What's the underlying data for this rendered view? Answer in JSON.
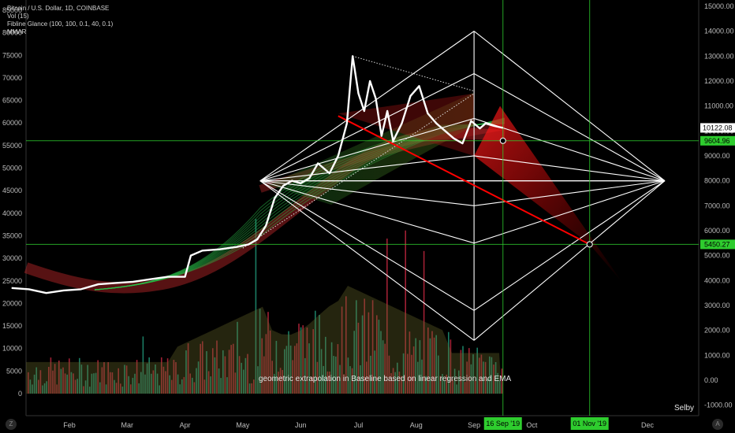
{
  "legend": {
    "symbol": "Bitcoin / U.S. Dollar, 1D, COINBASE",
    "vol": "Vol (15)",
    "fibline": "Fibline Glance (100, 100, 0.1, 40, 0.1)",
    "mmar": "MMAR"
  },
  "annotation_text": "geometric extrapolation in Baseline based on linear regression and EMA",
  "author": "Selby",
  "buttons": {
    "left": "Z",
    "right": "A"
  },
  "colors": {
    "price": "#ffffff",
    "up_volume": "#1e8a6e",
    "down_volume": "#b0243a",
    "ema_green": "#2bbf4a",
    "ema_red": "#c0282b",
    "projection": "#ff0000",
    "guide": "#2ecc2e"
  },
  "chart_data": {
    "type": "line",
    "left_axis": {
      "labels": [
        "85000",
        "80000",
        "75000",
        "70000",
        "65000",
        "60000",
        "55000",
        "50000",
        "45000",
        "40000",
        "35000",
        "30000",
        "25000",
        "20000",
        "15000",
        "10000",
        "5000",
        "0"
      ],
      "range": [
        0,
        85000
      ]
    },
    "right_axis": {
      "labels": [
        "15000.00",
        "14000.00",
        "13000.00",
        "12000.00",
        "11000.00",
        "10000.00",
        "9000.00",
        "8000.00",
        "7000.00",
        "6000.00",
        "5000.00",
        "4000.00",
        "3000.00",
        "2000.00",
        "1000.00",
        "0.00",
        "-1000.00"
      ],
      "range": [
        -1000,
        15000
      ]
    },
    "x_labels": [
      "Feb",
      "Mar",
      "Apr",
      "May",
      "Jun",
      "Jul",
      "Aug",
      "Sep",
      "Oct",
      "Nov",
      "Dec"
    ],
    "x_label_months": [
      2,
      3,
      4,
      5,
      6,
      7,
      8,
      9,
      10,
      11,
      12
    ],
    "current_price": "10122.08",
    "level_tags": [
      {
        "label": "9604.96",
        "value": 9604.96
      },
      {
        "label": "5450.27",
        "value": 5450.27
      }
    ],
    "date_tags": [
      {
        "label": "16 Sep '19",
        "month": 9.5
      },
      {
        "label": "01 Nov '19",
        "month": 11.0
      }
    ],
    "series": [
      {
        "name": "",
        "x": [
          1.0,
          1.3,
          1.6,
          1.9,
          2.2,
          2.5,
          2.8,
          3.1,
          3.4,
          3.7,
          4.0,
          4.1,
          4.3,
          4.6,
          4.9,
          5.1,
          5.25,
          5.4,
          5.55,
          5.7,
          5.85,
          6.0,
          6.15,
          6.3,
          6.5,
          6.65,
          6.8,
          6.9,
          7.0,
          7.1,
          7.2,
          7.3,
          7.4,
          7.5,
          7.6,
          7.75,
          7.9,
          8.05,
          8.2,
          8.35,
          8.5,
          8.65,
          8.8,
          8.95,
          9.1,
          9.2,
          9.35,
          9.5
        ],
        "y": [
          3700,
          3650,
          3500,
          3600,
          3650,
          3850,
          3900,
          3950,
          4050,
          4150,
          4150,
          5000,
          5200,
          5250,
          5350,
          5450,
          5650,
          6200,
          7300,
          7800,
          8000,
          7900,
          8100,
          8700,
          8300,
          9000,
          10300,
          13000,
          11500,
          10800,
          12000,
          11300,
          9800,
          10800,
          9600,
          10300,
          11400,
          11800,
          10700,
          10300,
          10000,
          9700,
          9500,
          10400,
          10100,
          10300,
          10200,
          10122
        ]
      }
    ],
    "geometry_points": {
      "apex_top": [
        9.0,
        14000
      ],
      "inner_top": [
        9.0,
        12300
      ],
      "mid": [
        9.0,
        9000
      ],
      "inner_bottom": [
        9.0,
        2800
      ],
      "bottom": [
        9.0,
        1600
      ],
      "focus": [
        12.3,
        8000
      ],
      "origin": [
        5.3,
        8000
      ]
    },
    "regression_line": {
      "from": [
        6.65,
        10600
      ],
      "to": [
        11.0,
        5450.27
      ]
    },
    "volume_scale_max": 85000
  }
}
